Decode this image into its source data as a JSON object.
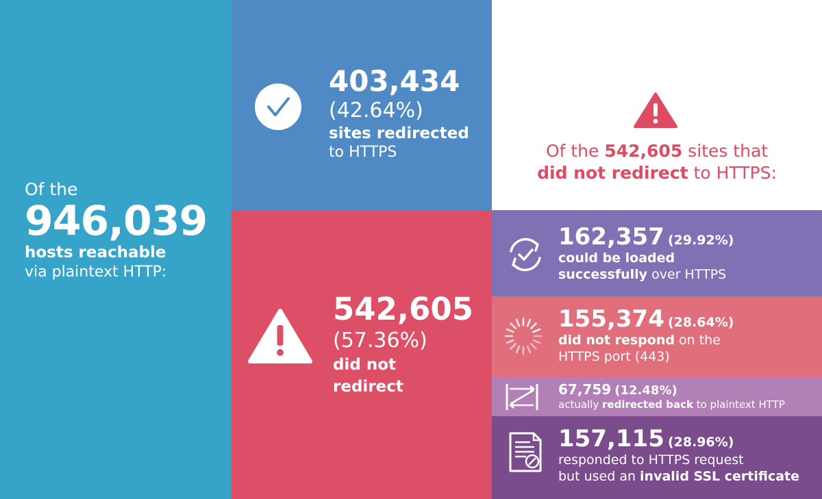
{
  "left": {
    "intro": "Of the",
    "total": "946,039",
    "line1": "hosts reachable",
    "line2": "via plaintext HTTP:"
  },
  "redirected": {
    "count": "403,434",
    "percent": "(42.64%)",
    "line1": "sites redirected",
    "line2": "to HTTPS",
    "icon": "check-circle-icon"
  },
  "header": {
    "pre": "Of the ",
    "count": "542,605",
    "mid": " sites that",
    "bold": "did not redirect",
    "post": " to HTTPS:",
    "icon": "warning-icon",
    "color": "#dd4c62"
  },
  "not_redirected": {
    "count": "542,605",
    "percent": "(57.36%)",
    "line1": "did not",
    "line2": "redirect",
    "icon": "warning-icon"
  },
  "rows": {
    "loaded": {
      "count": "162,357",
      "percent": "(29.92%)",
      "line1": "could be loaded",
      "line2_bold": "successfully",
      "line2_rest": " over HTTPS",
      "icon": "refresh-check-icon"
    },
    "no_response": {
      "count": "155,374",
      "percent": "(28.64%)",
      "line1_bold": "did not respond",
      "line1_rest": " on the",
      "line2": "HTTPS port (443)",
      "icon": "loading-spinner-icon"
    },
    "redirected_back": {
      "count": "67,759",
      "percent": "(12.48%)",
      "line_pre": "actually ",
      "line_bold": "redirected back",
      "line_post": " to plaintext HTTP",
      "icon": "redirect-loop-icon"
    },
    "invalid_cert": {
      "count": "157,115",
      "percent": "(28.96%)",
      "line1": "responded to HTTPS request",
      "line2_pre": "but used an ",
      "line2_bold": "invalid SSL certificate",
      "icon": "certificate-icon"
    }
  },
  "colors": {
    "left": "#36a3c8",
    "redirected": "#4f8ac5",
    "not_redirected": "#dd4f66",
    "loaded": "#7f71b3",
    "no_response": "#e06e7b",
    "redirected_back": "#b27fb7",
    "invalid_cert": "#7b4c8c"
  }
}
